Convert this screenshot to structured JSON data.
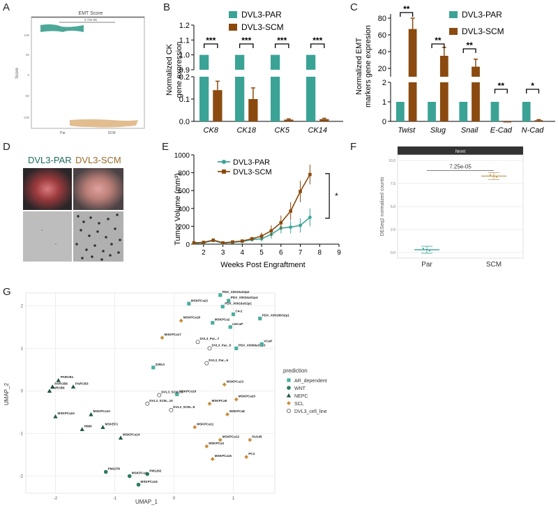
{
  "panels": {
    "A": {
      "letter": "A",
      "title": "EMT Score",
      "pvalue": "5.72e-06",
      "ylabel": "Score",
      "categories": [
        "Par",
        "SCM"
      ],
      "yticks": [
        "100",
        "50",
        "0",
        "-50",
        "-100"
      ],
      "colors": {
        "par": "#3b9e8e",
        "scm": "#e0b98a"
      }
    },
    "B": {
      "letter": "B",
      "ylabel_line1": "Normalized CK",
      "ylabel_line2": "gene expression",
      "categories": [
        "CK8",
        "CK18",
        "CK5",
        "CK14"
      ],
      "sig": [
        "***",
        "***",
        "***",
        "***"
      ],
      "upper_ticks": [
        "1.2",
        "1.1",
        "1.0",
        "0.9"
      ],
      "lower_ticks": [
        "0.2",
        "0.1",
        "0.0"
      ]
    },
    "C": {
      "letter": "C",
      "ylabel_line1": "Normalized EMT",
      "ylabel_line2": "markers gene expresion",
      "categories": [
        "Twist",
        "Slug",
        "Snail",
        "E-Cad",
        "N-Cad"
      ],
      "sig": [
        "**",
        "**",
        "**",
        "**",
        "*"
      ],
      "upper_ticks": [
        "80",
        "60",
        "40",
        "20"
      ],
      "lower_ticks": [
        "2",
        "1",
        "0"
      ]
    },
    "D": {
      "letter": "D",
      "label_par": "DVL3-PAR",
      "label_scm": "DVL3-SCM"
    },
    "E": {
      "letter": "E",
      "ylabel": "Tumor Volume (mm³)",
      "xlabel": "Weeks Post  Engraftment",
      "sig": "*",
      "xticks": [
        "2",
        "3",
        "4",
        "5",
        "6",
        "7",
        "8",
        "9"
      ],
      "yticks": [
        "0",
        "200",
        "400",
        "600",
        "800",
        "1000"
      ]
    },
    "F": {
      "letter": "F",
      "strip": "Nnmt",
      "pvalue": "7.25e-05",
      "ylabel": "DESeq2 normalized counts",
      "categories": [
        "Par",
        "SCM"
      ],
      "yticks": [
        "10.0",
        "7.5",
        "5.0",
        "2.5",
        "0.0"
      ]
    },
    "G": {
      "letter": "G",
      "xlabel": "UMAP_1",
      "ylabel": "UMAP_2",
      "legend_title": "prediction",
      "xticks": [
        "-2",
        "-1",
        "0",
        "1"
      ],
      "yticks": [
        "2",
        "1",
        "0",
        "-1",
        "-2"
      ]
    }
  },
  "legend": {
    "par": "DVL3-PAR",
    "scm": "DVL3-SCM",
    "par_color": "#3aa396",
    "scm_color": "#8b4a0f"
  },
  "chart_data": [
    {
      "type": "bar",
      "panel": "B",
      "categories": [
        "CK8",
        "CK18",
        "CK5",
        "CK14"
      ],
      "series": [
        {
          "name": "DVL3-PAR",
          "values": [
            1.0,
            1.0,
            1.0,
            1.0
          ],
          "errors": [
            0,
            0,
            0,
            0
          ]
        },
        {
          "name": "DVL3-SCM",
          "values": [
            0.14,
            0.1,
            0.008,
            0.01
          ],
          "errors": [
            0.04,
            0.05,
            0.003,
            0.004
          ]
        }
      ],
      "ylabel": "Normalized CK gene expression"
    },
    {
      "type": "bar",
      "panel": "C",
      "categories": [
        "Twist",
        "Slug",
        "Snail",
        "E-Cad",
        "N-Cad"
      ],
      "series": [
        {
          "name": "DVL3-PAR",
          "values": [
            1,
            1,
            1,
            1,
            1
          ],
          "errors": [
            0,
            0,
            0,
            0,
            0
          ]
        },
        {
          "name": "DVL3-SCM",
          "values": [
            67,
            35,
            22,
            0.0,
            0.06
          ],
          "errors": [
            13,
            10,
            9,
            0,
            0.03
          ]
        }
      ],
      "ylabel": "Normalized EMT markers gene expresion"
    },
    {
      "type": "line",
      "panel": "E",
      "x": [
        1.5,
        2,
        2.5,
        3,
        3.5,
        4,
        4.5,
        5,
        5.5,
        6,
        6.5,
        7,
        7.5
      ],
      "series": [
        {
          "name": "DVL3-PAR",
          "values": [
            10,
            15,
            40,
            10,
            20,
            30,
            50,
            60,
            110,
            180,
            190,
            210,
            300
          ],
          "errors": [
            5,
            5,
            10,
            5,
            5,
            10,
            20,
            30,
            50,
            60,
            70,
            80,
            100
          ]
        },
        {
          "name": "DVL3-SCM",
          "values": [
            15,
            20,
            45,
            15,
            25,
            35,
            60,
            90,
            150,
            240,
            370,
            590,
            780
          ],
          "errors": [
            5,
            5,
            10,
            5,
            5,
            10,
            20,
            40,
            60,
            80,
            100,
            120,
            110
          ]
        }
      ],
      "xlabel": "Weeks Post  Engraftment",
      "ylabel": "Tumor Volume (mm³)",
      "xlim": [
        1.5,
        9
      ],
      "ylim": [
        0,
        1000
      ]
    },
    {
      "type": "scatter",
      "panel": "F",
      "categories": [
        "Par",
        "SCM"
      ],
      "values": [
        0.3,
        8.3
      ],
      "ylim": [
        0,
        10
      ]
    },
    {
      "type": "scatter",
      "panel": "G",
      "xlabel": "UMAP_1",
      "ylabel": "UMAP_2",
      "xlim": [
        -2.5,
        1.7
      ],
      "ylim": [
        -2.4,
        2.3
      ],
      "classes": [
        {
          "name": "AR_dependent",
          "color": "#4aaea0",
          "shape": "square"
        },
        {
          "name": "WNT",
          "color": "#2a7a5f",
          "shape": "circle"
        },
        {
          "name": "NEPC",
          "color": "#245a46",
          "shape": "triangle"
        },
        {
          "name": "SCL",
          "color": "#c89040",
          "shape": "diamond"
        },
        {
          "name": "DVL3_cell_line",
          "color": "#ffffff",
          "shape": "open-circle"
        }
      ],
      "points": [
        {
          "label": "PDX_X0010aS2p2",
          "x": 0.78,
          "y": 2.25,
          "cls": 0
        },
        {
          "label": "PDX_X0034aS1p4",
          "x": 0.92,
          "y": 2.12,
          "cls": 0
        },
        {
          "label": "MSKPCa22",
          "x": 0.25,
          "y": 2.05,
          "cls": 0
        },
        {
          "label": "PDX_X0016aS2p1",
          "x": 0.82,
          "y": 1.98,
          "cls": 0
        },
        {
          "label": "C4-2",
          "x": 1.0,
          "y": 1.8,
          "cls": 0
        },
        {
          "label": "MSKPCa2",
          "x": 0.65,
          "y": 1.6,
          "cls": 0
        },
        {
          "label": "PDX_X0016bS2p1",
          "x": 1.45,
          "y": 1.7,
          "cls": 0
        },
        {
          "label": "LNCaP",
          "x": 0.95,
          "y": 1.5,
          "cls": 0
        },
        {
          "label": "MSKPCa18",
          "x": 0.12,
          "y": 1.65,
          "cls": 3
        },
        {
          "label": "MSKPCa17",
          "x": -0.2,
          "y": 1.25,
          "cls": 3
        },
        {
          "label": "DVL3_Par...7",
          "x": 0.4,
          "y": 1.15,
          "cls": 4
        },
        {
          "label": "DVL3_Par...5",
          "x": 0.6,
          "y": 1.0,
          "cls": 4
        },
        {
          "label": "PDX_X0009aS1p3",
          "x": 1.05,
          "y": 1.0,
          "cls": 0
        },
        {
          "label": "VCaP",
          "x": 1.48,
          "y": 1.1,
          "cls": 0
        },
        {
          "label": "DVL3_Par...6",
          "x": 0.55,
          "y": 0.65,
          "cls": 4
        },
        {
          "label": "22Rv1",
          "x": -0.35,
          "y": 0.55,
          "cls": 0
        },
        {
          "label": "PARCB1",
          "x": -1.95,
          "y": 0.25,
          "cls": 2
        },
        {
          "label": "PARCB8",
          "x": -2.05,
          "y": 0.1,
          "cls": 2
        },
        {
          "label": "PARCB3",
          "x": -1.7,
          "y": 0.1,
          "cls": 2
        },
        {
          "label": "PARCB6",
          "x": -2.1,
          "y": 0.0,
          "cls": 2
        },
        {
          "label": "MSKPCa13",
          "x": 0.85,
          "y": 0.15,
          "cls": 3
        },
        {
          "label": "MSKPCa19",
          "x": 0.05,
          "y": -0.08,
          "cls": 0
        },
        {
          "label": "DVL3_SCM...9",
          "x": -0.25,
          "y": -0.1,
          "cls": 4
        },
        {
          "label": "DVL3_SCM...10",
          "x": -0.45,
          "y": -0.3,
          "cls": 4
        },
        {
          "label": "MSKPCa20",
          "x": 1.05,
          "y": -0.2,
          "cls": 3
        },
        {
          "label": "MSKPCa9",
          "x": 0.6,
          "y": -0.3,
          "cls": 3
        },
        {
          "label": "DVL3_SCM...8",
          "x": -0.05,
          "y": -0.45,
          "cls": 4
        },
        {
          "label": "MSKPCa8",
          "x": 0.9,
          "y": -0.55,
          "cls": 3
        },
        {
          "label": "MSKPCa24",
          "x": -2.0,
          "y": -0.6,
          "cls": 2
        },
        {
          "label": "MSKPCa10",
          "x": -1.4,
          "y": -0.55,
          "cls": 2
        },
        {
          "label": "H660",
          "x": -1.55,
          "y": -0.9,
          "cls": 2
        },
        {
          "label": "MSKEF1",
          "x": -1.2,
          "y": -0.85,
          "cls": 2
        },
        {
          "label": "MSKPCa11",
          "x": 0.35,
          "y": -0.85,
          "cls": 3
        },
        {
          "label": "MSKPCa14",
          "x": -0.9,
          "y": -1.1,
          "cls": 2
        },
        {
          "label": "MSKPCa12",
          "x": 0.78,
          "y": -1.15,
          "cls": 3
        },
        {
          "label": "MSKPCa3",
          "x": 0.55,
          "y": -1.3,
          "cls": 3
        },
        {
          "label": "DU145",
          "x": 1.28,
          "y": -1.15,
          "cls": 3
        },
        {
          "label": "PC3",
          "x": 1.22,
          "y": -1.55,
          "cls": 3
        },
        {
          "label": "MSKPCa15",
          "x": 0.65,
          "y": -1.6,
          "cls": 3
        },
        {
          "label": "PM1078",
          "x": -1.15,
          "y": -1.9,
          "cls": 1
        },
        {
          "label": "PM1262",
          "x": -0.45,
          "y": -1.95,
          "cls": 1
        },
        {
          "label": "MSKPCa1",
          "x": -0.75,
          "y": -2.0,
          "cls": 1
        },
        {
          "label": "MSKPCa16",
          "x": -0.6,
          "y": -2.2,
          "cls": 1
        }
      ]
    }
  ]
}
